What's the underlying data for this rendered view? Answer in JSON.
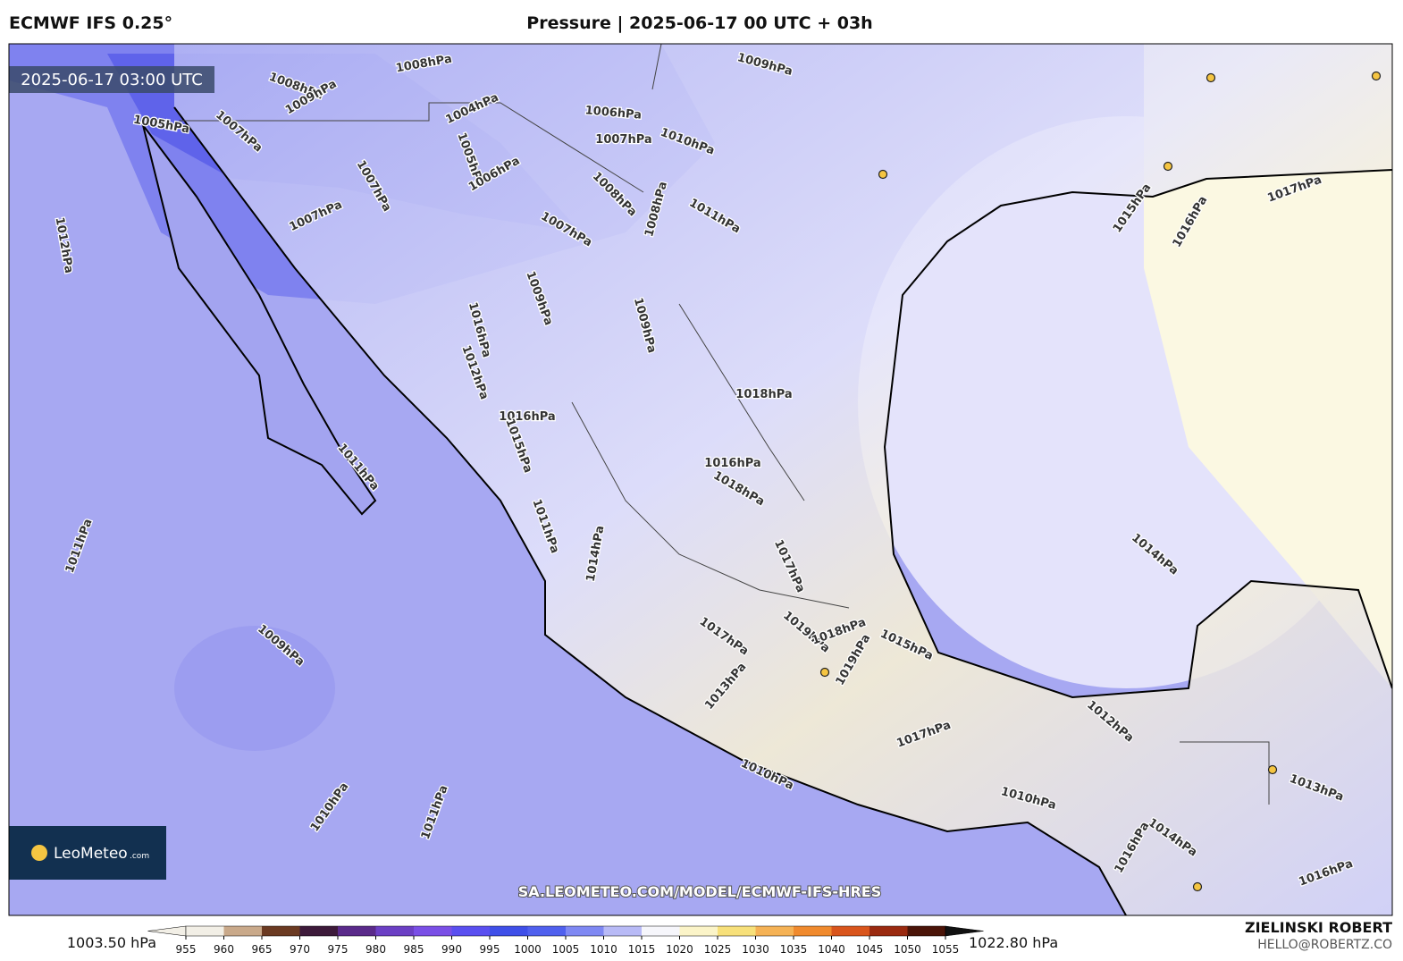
{
  "header": {
    "model": "ECMWF IFS 0.25°",
    "title": "Pressure | 2025-06-17 00 UTC + 03h"
  },
  "map": {
    "timestamp": "2025-06-17 03:00 UTC",
    "logo_name": "LeoMeteo",
    "logo_suffix": ".com",
    "url": "SA.LEOMETEO.COM/MODEL/ECMWF-IFS-HRES",
    "contour_labels": [
      "1008hPa",
      "1009hPa",
      "1008hPa",
      "1009hPa",
      "1006hPa",
      "1004hPa",
      "1005hPa",
      "1007hPa",
      "1007hPa",
      "1010hPa",
      "1005hPa",
      "1006hPa",
      "1007hPa",
      "1008hPa",
      "1008hPa",
      "1011hPa",
      "1007hPa",
      "1012hPa",
      "1007hPa",
      "1009hPa",
      "1009hPa",
      "1016hPa",
      "1012hPa",
      "1018hPa",
      "1016hPa",
      "1015hPa",
      "1016hPa",
      "1018hPa",
      "1011hPa",
      "1011hPa",
      "1014hPa",
      "1011hPa",
      "1017hPa",
      "1014hPa",
      "1009hPa",
      "1019hPa",
      "1018hPa",
      "1019hPa",
      "1015hPa",
      "1017hPa",
      "1013hPa",
      "1012hPa",
      "1017hPa",
      "1010hPa",
      "1013hPa",
      "1010hPa",
      "1011hPa",
      "1010hPa",
      "1014hPa",
      "1016hPa",
      "1016hPa",
      "1015hPa",
      "1016hPa",
      "1017hPa"
    ]
  },
  "colorbar": {
    "min_label": "1003.50 hPa",
    "max_label": "1022.80 hPa",
    "ticks": [
      955,
      960,
      965,
      970,
      975,
      980,
      985,
      990,
      995,
      1000,
      1005,
      1010,
      1015,
      1020,
      1025,
      1030,
      1035,
      1040,
      1045,
      1050,
      1055
    ],
    "colors": [
      "#f2efe6",
      "#c9a98a",
      "#6b3a22",
      "#3d1a3a",
      "#5a2a8a",
      "#6b3fc4",
      "#7a4fe6",
      "#5a4ff0",
      "#3f4fe8",
      "#5060ee",
      "#7f88f3",
      "#b8baf6",
      "#f6f6fb",
      "#fbf4c8",
      "#f7e07a",
      "#f5b255",
      "#f08a2e",
      "#d9551c",
      "#9a2a10",
      "#4a1408",
      "#111111"
    ]
  },
  "footer": {
    "author": "ZIELINSKI ROBERT",
    "email": "HELLO@ROBERTZ.CO"
  }
}
